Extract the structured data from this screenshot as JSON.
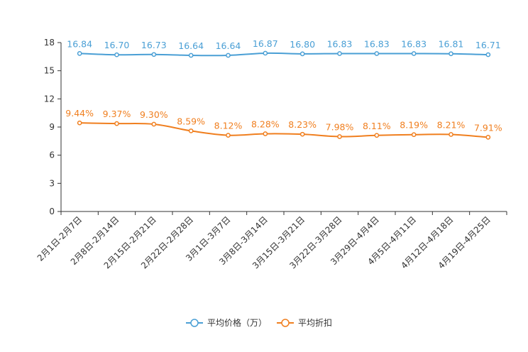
{
  "chart_data": {
    "type": "line",
    "title": "",
    "xlabel": "",
    "ylabel": "",
    "ylim": [
      0,
      18
    ],
    "yticks": [
      0,
      3,
      6,
      9,
      12,
      15,
      18
    ],
    "grid": false,
    "legend_position": "bottom",
    "categories": [
      "2月1日-2月7日",
      "2月8日-2月14日",
      "2月15日-2月21日",
      "2月22日-2月28日",
      "3月1日-3月7日",
      "3月8日-3月14日",
      "3月15日-3月21日",
      "3月22日-3月28日",
      "3月29日-4月4日",
      "4月5日-4月11日",
      "4月12日-4月18日",
      "4月19日-4月25日"
    ],
    "series": [
      {
        "name": "平均价格（万）",
        "color": "#4a9fd5",
        "values": [
          16.84,
          16.7,
          16.73,
          16.64,
          16.64,
          16.87,
          16.8,
          16.83,
          16.83,
          16.83,
          16.81,
          16.71
        ],
        "labels": [
          "16.84",
          "16.70",
          "16.73",
          "16.64",
          "16.64",
          "16.87",
          "16.80",
          "16.83",
          "16.83",
          "16.83",
          "16.81",
          "16.71"
        ]
      },
      {
        "name": "平均折扣",
        "color": "#f07f1f",
        "values": [
          9.44,
          9.37,
          9.3,
          8.59,
          8.12,
          8.28,
          8.23,
          7.98,
          8.11,
          8.19,
          8.21,
          7.91
        ],
        "labels": [
          "9.44%",
          "9.37%",
          "9.30%",
          "8.59%",
          "8.12%",
          "8.28%",
          "8.23%",
          "7.98%",
          "8.11%",
          "8.19%",
          "8.21%",
          "7.91%"
        ]
      }
    ]
  }
}
